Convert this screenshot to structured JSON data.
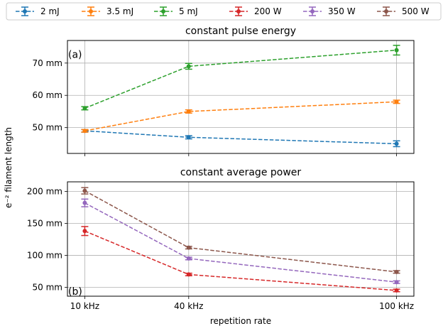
{
  "chart_data": [
    {
      "type": "line",
      "panel_label": "(a)",
      "title": "constant pulse energy",
      "x": [
        10,
        40,
        100
      ],
      "x_tick_labels": [
        "10 kHz",
        "40 kHz",
        "100 kHz"
      ],
      "y_ticks": [
        50,
        60,
        70
      ],
      "y_tick_labels": [
        "50 mm",
        "60 mm",
        "70 mm"
      ],
      "ylim": [
        42,
        77
      ],
      "grid": true,
      "series": [
        {
          "name": "2 mJ",
          "color": "#1f77b4",
          "values": [
            49,
            47,
            45
          ],
          "errors": [
            0.4,
            0.5,
            0.9
          ]
        },
        {
          "name": "3.5 mJ",
          "color": "#ff7f0e",
          "values": [
            49,
            55,
            58
          ],
          "errors": [
            0.4,
            0.5,
            0.5
          ]
        },
        {
          "name": "5 mJ",
          "color": "#2ca02c",
          "values": [
            56,
            69,
            74
          ],
          "errors": [
            0.5,
            0.9,
            1.5
          ]
        }
      ]
    },
    {
      "type": "line",
      "panel_label": "(b)",
      "title": "constant average power",
      "x": [
        10,
        40,
        100
      ],
      "x_tick_labels": [
        "10 kHz",
        "40 kHz",
        "100 kHz"
      ],
      "y_ticks": [
        50,
        100,
        150,
        200
      ],
      "y_tick_labels": [
        "50 mm",
        "100 mm",
        "150 mm",
        "200 mm"
      ],
      "ylim": [
        36,
        215
      ],
      "grid": true,
      "series": [
        {
          "name": "200 W",
          "color": "#d62728",
          "values": [
            138,
            70,
            45
          ],
          "errors": [
            7,
            2,
            2
          ]
        },
        {
          "name": "350 W",
          "color": "#9467bd",
          "values": [
            182,
            95,
            58
          ],
          "errors": [
            6,
            2,
            2
          ]
        },
        {
          "name": "500 W",
          "color": "#8c564b",
          "values": [
            201,
            112,
            74
          ],
          "errors": [
            5,
            2,
            2
          ]
        }
      ]
    }
  ],
  "shared": {
    "xlabel": "repetition rate",
    "ylabel": "e⁻² filament length"
  },
  "legend": {
    "placement": "top",
    "entries": [
      "2 mJ",
      "3.5 mJ",
      "5 mJ",
      "200 W",
      "350 W",
      "500 W"
    ]
  }
}
